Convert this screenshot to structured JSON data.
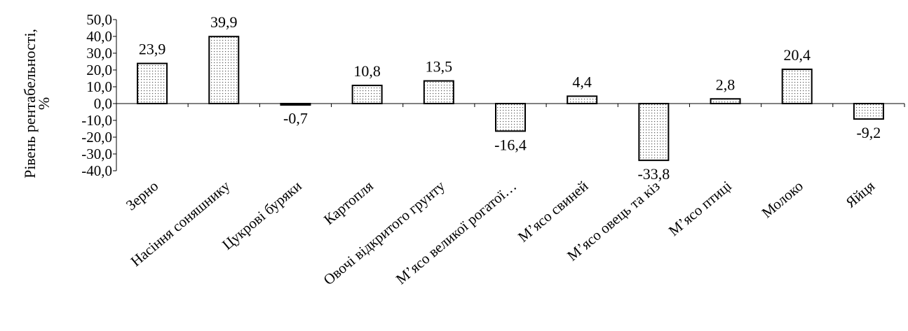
{
  "chart_data": {
    "type": "bar",
    "title": "",
    "xlabel": "",
    "ylabel_line1": "Рівень рентабельності,",
    "ylabel_line2": "%",
    "ylim": [
      -40,
      50
    ],
    "yticks": [
      -40,
      -30,
      -20,
      -10,
      0,
      10,
      20,
      30,
      40,
      50
    ],
    "ytick_labels": [
      "-40,0",
      "-30,0",
      "-20,0",
      "-10,0",
      "0,0",
      "10,0",
      "20,0",
      "30,0",
      "40,0",
      "50,0"
    ],
    "categories": [
      "Зерно",
      "Насіння соняшнику",
      "Цукрові буряки",
      "Картопля",
      "Овочі відкритого грунту",
      "М’ясо великої рогатої…",
      "М’ясо свиней",
      "М’ясо овець та кіз",
      "М’ясо птиці",
      "Молоко",
      "Яйця"
    ],
    "values": [
      23.9,
      39.9,
      -0.7,
      10.8,
      13.5,
      -16.4,
      4.4,
      -33.8,
      2.8,
      20.4,
      -9.2
    ],
    "value_labels": [
      "23,9",
      "39,9",
      "-0,7",
      "10,8",
      "13,5",
      "-16,4",
      "4,4",
      "-33,8",
      "2,8",
      "20,4",
      "-9,2"
    ],
    "grid": false,
    "legend": "none",
    "bar_fill": "dotted",
    "bar_stroke_color": "#000000",
    "bar_fill_color": "#ffffff",
    "dot_color": "#555555"
  }
}
